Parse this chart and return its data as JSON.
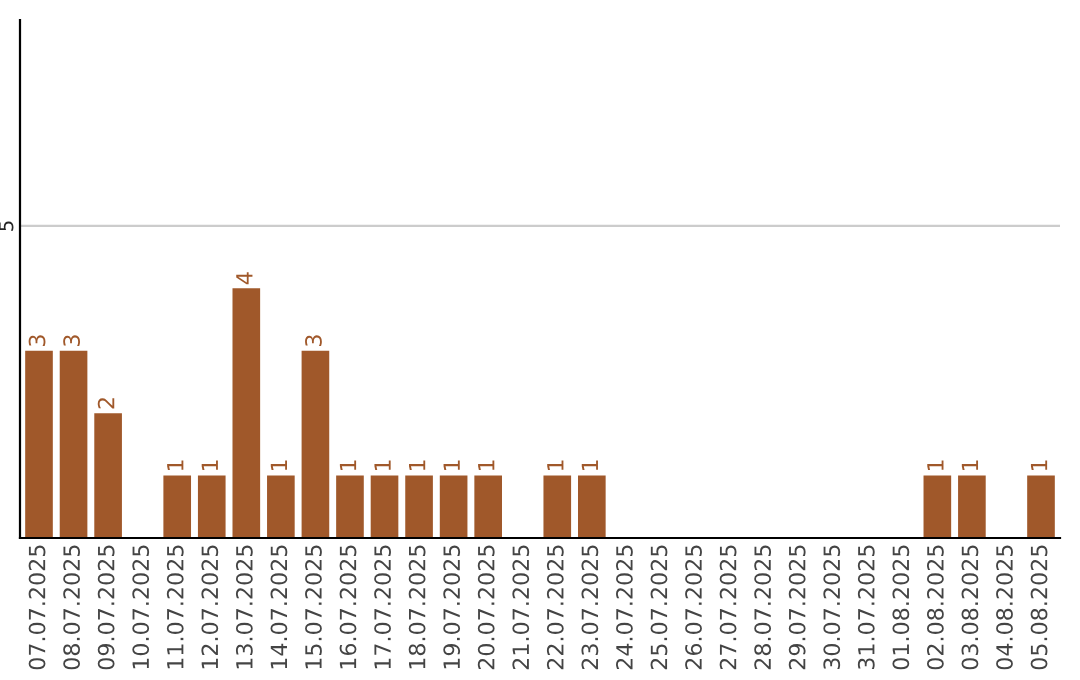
{
  "chart_data": {
    "type": "bar",
    "categories": [
      "07.07.2025",
      "08.07.2025",
      "09.07.2025",
      "10.07.2025",
      "11.07.2025",
      "12.07.2025",
      "13.07.2025",
      "14.07.2025",
      "15.07.2025",
      "16.07.2025",
      "17.07.2025",
      "18.07.2025",
      "19.07.2025",
      "20.07.2025",
      "21.07.2025",
      "22.07.2025",
      "23.07.2025",
      "24.07.2025",
      "25.07.2025",
      "26.07.2025",
      "27.07.2025",
      "28.07.2025",
      "29.07.2025",
      "30.07.2025",
      "31.07.2025",
      "01.08.2025",
      "02.08.2025",
      "03.08.2025",
      "04.08.2025",
      "05.08.2025"
    ],
    "values": [
      3,
      3,
      2,
      0,
      1,
      1,
      4,
      1,
      3,
      1,
      1,
      1,
      1,
      1,
      0,
      1,
      1,
      0,
      0,
      0,
      0,
      0,
      0,
      0,
      0,
      0,
      1,
      1,
      0,
      1
    ],
    "value_labels": [
      "3",
      "3",
      "2",
      null,
      "1",
      "1",
      "4",
      "1",
      "3",
      "1",
      "1",
      "1",
      "1",
      "1",
      null,
      "1",
      "1",
      null,
      null,
      null,
      null,
      null,
      null,
      null,
      null,
      null,
      "1",
      "1",
      null,
      "1"
    ],
    "color": "#a0582a",
    "ylim": [
      0,
      8.3
    ],
    "yticks": [
      5
    ],
    "grid": "y",
    "legend": false
  }
}
